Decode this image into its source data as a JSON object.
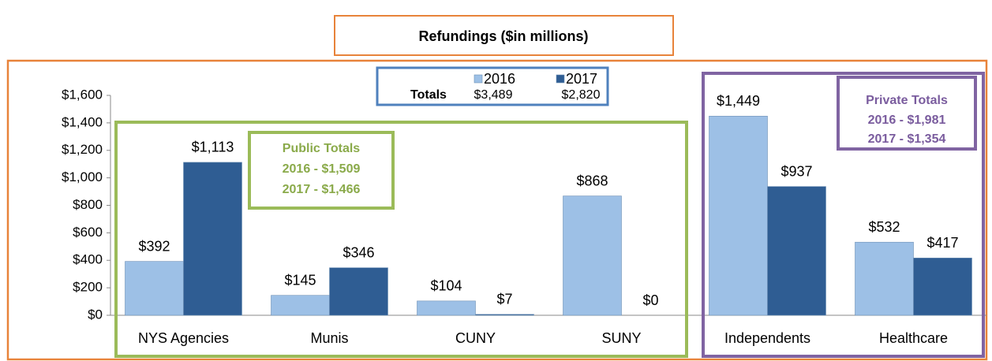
{
  "chart_data": {
    "type": "bar",
    "title": "Refundings ($in millions)",
    "categories": [
      "NYS Agencies",
      "Munis",
      "CUNY",
      "SUNY",
      "Independents",
      "Healthcare"
    ],
    "series": [
      {
        "name": "2016",
        "color": "#9dc0e6",
        "values": [
          392,
          145,
          104,
          868,
          1449,
          532
        ],
        "value_labels": [
          "$392",
          "$145",
          "$104",
          "$868",
          "$1,449",
          "$532"
        ]
      },
      {
        "name": "2017",
        "color": "#2f5d93",
        "values": [
          1113,
          346,
          7,
          0,
          937,
          417
        ],
        "value_labels": [
          "$1,113",
          "$346",
          "$7",
          "$0",
          "$937",
          "$417"
        ]
      }
    ],
    "ylim": [
      0,
      1600
    ],
    "yticks": [
      {
        "value": 0,
        "label": "$0"
      },
      {
        "value": 200,
        "label": "$200"
      },
      {
        "value": 400,
        "label": "$400"
      },
      {
        "value": 600,
        "label": "$600"
      },
      {
        "value": 800,
        "label": "$800"
      },
      {
        "value": 1000,
        "label": "$1,000"
      },
      {
        "value": 1200,
        "label": "$1,200"
      },
      {
        "value": 1400,
        "label": "$1,400"
      },
      {
        "value": 1600,
        "label": "$1,600"
      }
    ],
    "grid": false,
    "totals": {
      "label": "Totals",
      "texts": [
        "$3,489",
        "$2,820"
      ]
    },
    "public_totals": {
      "title": "Public Totals",
      "lines": [
        "2016 - $1,509",
        "2017 - $1,466"
      ]
    },
    "private_totals": {
      "title": "Private Totals",
      "lines": [
        "2016 - $1,981",
        "2017 - $1,354"
      ]
    }
  }
}
